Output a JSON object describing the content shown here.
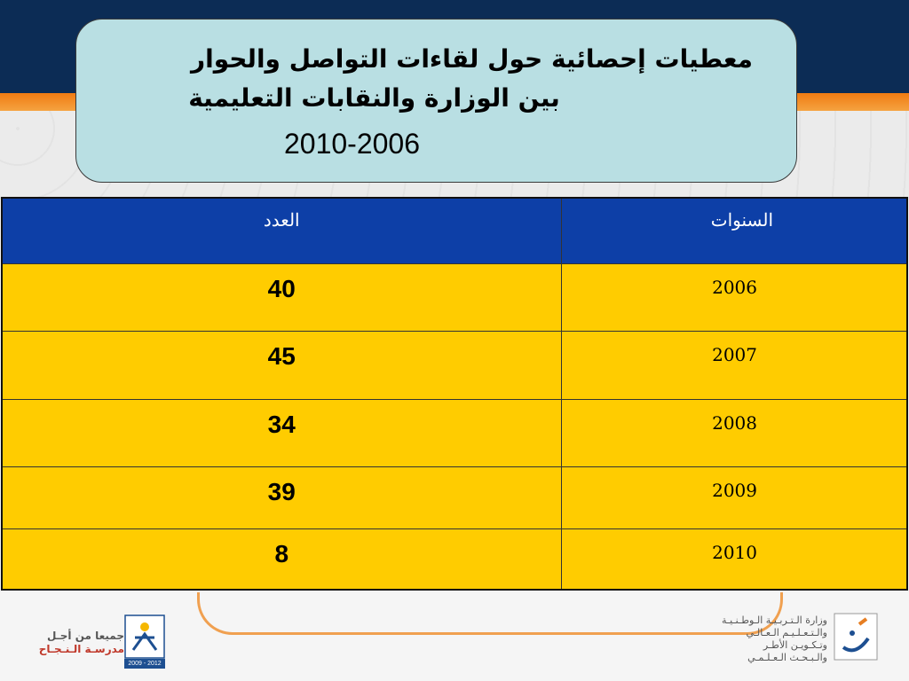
{
  "title": {
    "line1": "معطيات إحصائية حول لقاءات التواصل والحوار",
    "line2": "بين الوزارة والنقابات التعليمية",
    "line3": "2010-2006"
  },
  "table": {
    "headers": {
      "years": "السنوات",
      "count": "العدد"
    },
    "rows": [
      {
        "year": "2006",
        "count": "40"
      },
      {
        "year": "2007",
        "count": "45"
      },
      {
        "year": "2008",
        "count": "34"
      },
      {
        "year": "2009",
        "count": "39"
      },
      {
        "year": "2010",
        "count": "8"
      }
    ]
  },
  "footer": {
    "left_slogan_line1": "جميعا من أجـل",
    "left_slogan_line2": "مدرسـة الـنـجـاح",
    "emblem_years": "2009 - 2012",
    "ministry_line1": "وزارة الـتـربـيـة الـوطـنـيـة",
    "ministry_line2": "والـتـعـلـيـم الـعـالـي",
    "ministry_line3": "وتـكـويـن الأطـر",
    "ministry_line4": "والـبـحـث الـعـلـمـي"
  },
  "colors": {
    "top_band": "#0c2c55",
    "orange_band": "#f07b12",
    "title_box": "#b9dfe3",
    "table_header": "#0d3fa7",
    "table_body": "#ffcc00"
  }
}
